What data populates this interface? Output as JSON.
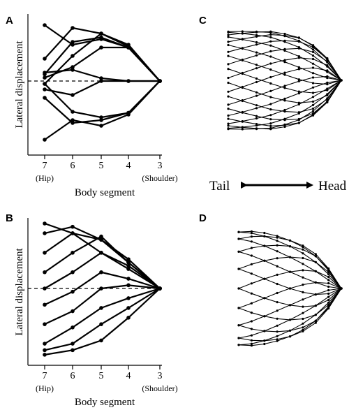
{
  "panels": [
    {
      "letter": "A",
      "chart_data": {
        "type": "line",
        "title": "",
        "xlabel": "Body segment",
        "ylabel": "Lateral displacement",
        "x": [
          7,
          6,
          5,
          4,
          3
        ],
        "x_tick_labels": [
          "7",
          "6",
          "5",
          "4",
          "3"
        ],
        "x_sub_labels": [
          "(Hip)",
          "",
          "",
          "",
          "(Shoulder)"
        ],
        "ylim": [
          -1.1,
          1.1
        ],
        "zero_line": "dashed",
        "grid": false,
        "legend": "none",
        "series": [
          {
            "values": [
              1.0,
              0.65,
              0.75,
              0.6,
              0
            ]
          },
          {
            "values": [
              0.4,
              0.95,
              0.85,
              0.62,
              0
            ]
          },
          {
            "values": [
              0.12,
              0.7,
              0.78,
              0.6,
              0
            ]
          },
          {
            "values": [
              -0.05,
              0.45,
              0.85,
              0.65,
              0
            ]
          },
          {
            "values": [
              0.06,
              0.25,
              0.6,
              0.6,
              0
            ]
          },
          {
            "values": [
              -0.15,
              -0.25,
              0.0,
              0.0,
              0
            ]
          },
          {
            "values": [
              0.15,
              0.2,
              0.05,
              0.0,
              0
            ]
          },
          {
            "values": [
              -0.05,
              -0.55,
              -0.65,
              -0.57,
              0
            ]
          },
          {
            "values": [
              -0.3,
              -0.75,
              -0.7,
              -0.57,
              0
            ]
          },
          {
            "values": [
              -1.05,
              -0.7,
              -0.8,
              -0.6,
              0
            ]
          }
        ]
      }
    },
    {
      "letter": "B",
      "chart_data": {
        "type": "line",
        "title": "",
        "xlabel": "Body segment",
        "ylabel": "Lateral displacement",
        "x": [
          7,
          6,
          5,
          4,
          3
        ],
        "x_tick_labels": [
          "7",
          "6",
          "5",
          "4",
          "3"
        ],
        "x_sub_labels": [
          "(Hip)",
          "",
          "",
          "",
          "(Shoulder)"
        ],
        "ylim": [
          -1.1,
          1.1
        ],
        "zero_line": "dashed",
        "grid": false,
        "legend": "none",
        "series": [
          {
            "values": [
              1.0,
              0.85,
              0.55,
              0.3,
              0
            ]
          },
          {
            "values": [
              0.85,
              0.95,
              0.75,
              0.4,
              0
            ]
          },
          {
            "values": [
              0.55,
              0.85,
              0.75,
              0.45,
              0
            ]
          },
          {
            "values": [
              0.25,
              0.55,
              0.8,
              0.4,
              0
            ]
          },
          {
            "values": [
              0.0,
              0.25,
              0.55,
              0.35,
              0
            ]
          },
          {
            "values": [
              -0.25,
              -0.05,
              0.25,
              0.15,
              0
            ]
          },
          {
            "values": [
              -0.55,
              -0.35,
              0.0,
              0.05,
              0
            ]
          },
          {
            "values": [
              -0.85,
              -0.6,
              -0.3,
              -0.15,
              0
            ]
          },
          {
            "values": [
              -0.95,
              -0.85,
              -0.55,
              -0.3,
              0
            ]
          },
          {
            "values": [
              -1.02,
              -0.95,
              -0.8,
              -0.45,
              0
            ]
          }
        ]
      }
    },
    {
      "letter": "C",
      "chart_data": {
        "type": "line",
        "title": "",
        "xlabel": "",
        "ylabel": "",
        "x": [
          7,
          6.5,
          6,
          5.5,
          5,
          4.5,
          4,
          3.5,
          3
        ],
        "axes": "none",
        "amplitude_envelope": [
          1.0,
          1.0,
          1.0,
          1.0,
          0.95,
          0.88,
          0.72,
          0.45,
          0.0
        ],
        "phase_offsets": [
          0.2,
          0.6,
          1.0,
          1.4,
          1.8,
          2.2,
          2.6,
          3.0,
          3.4
        ],
        "n_waveforms": 22,
        "note_direction": "Tail to Head"
      }
    },
    {
      "letter": "D",
      "chart_data": {
        "type": "line",
        "title": "",
        "xlabel": "",
        "ylabel": "",
        "x": [
          7,
          6.5,
          6,
          5.5,
          5,
          4.5,
          4,
          3.5,
          3
        ],
        "axes": "none",
        "amplitude_envelope": [
          1.0,
          1.0,
          0.97,
          0.92,
          0.85,
          0.75,
          0.6,
          0.35,
          0.0
        ],
        "phase_offsets": [
          0.0,
          0.35,
          0.7,
          1.05,
          1.4,
          1.75,
          2.1,
          2.45,
          2.8
        ],
        "n_waveforms": 18
      }
    }
  ],
  "direction": {
    "left": "Tail",
    "right": "Head"
  }
}
